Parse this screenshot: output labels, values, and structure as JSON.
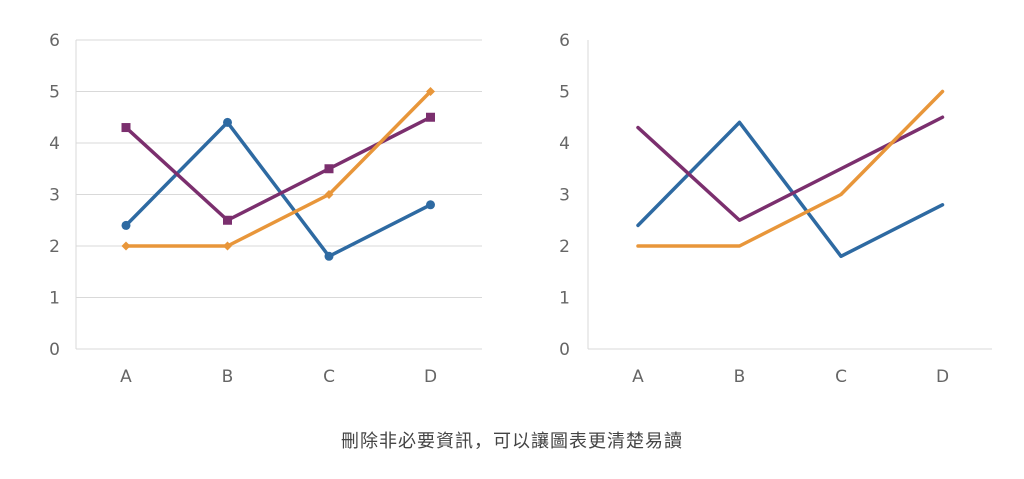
{
  "chart_data": [
    {
      "type": "line",
      "markers": true,
      "grid": true,
      "categories": [
        "A",
        "B",
        "C",
        "D"
      ],
      "ylim": [
        0,
        6
      ],
      "yticks": [
        0,
        1,
        2,
        3,
        4,
        5,
        6
      ],
      "series": [
        {
          "color": "#2e6aa2",
          "marker": "circle",
          "values": [
            2.4,
            4.4,
            1.8,
            2.8
          ]
        },
        {
          "color": "#7b2f6e",
          "marker": "square",
          "values": [
            4.3,
            2.5,
            3.5,
            4.5
          ]
        },
        {
          "color": "#e8963a",
          "marker": "diamond",
          "values": [
            2.0,
            2.0,
            3.0,
            5.0
          ]
        }
      ]
    },
    {
      "type": "line",
      "markers": false,
      "grid": false,
      "categories": [
        "A",
        "B",
        "C",
        "D"
      ],
      "ylim": [
        0,
        6
      ],
      "yticks": [
        0,
        1,
        2,
        3,
        4,
        5,
        6
      ],
      "series": [
        {
          "color": "#2e6aa2",
          "values": [
            2.4,
            4.4,
            1.8,
            2.8
          ]
        },
        {
          "color": "#7b2f6e",
          "values": [
            4.3,
            2.5,
            3.5,
            4.5
          ]
        },
        {
          "color": "#e8963a",
          "values": [
            2.0,
            2.0,
            3.0,
            5.0
          ]
        }
      ]
    }
  ],
  "caption": "刪除非必要資訊，可以讓圖表更清楚易讀"
}
